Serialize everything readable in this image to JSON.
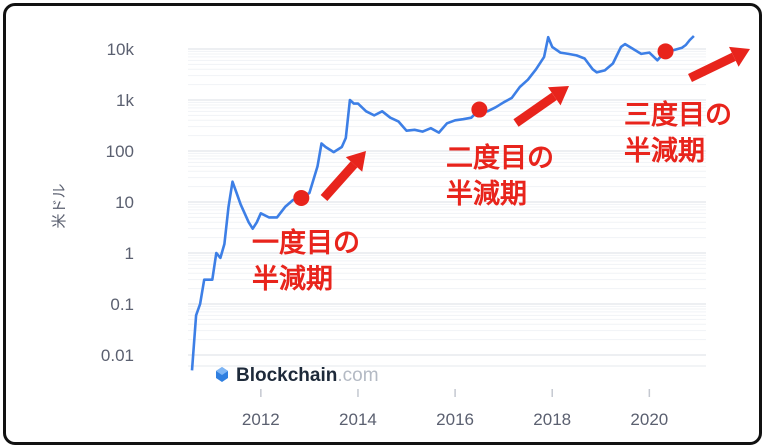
{
  "chart_data": {
    "type": "line",
    "y_scale": "log",
    "ylabel": "米ドル",
    "ylim": [
      0.003,
      25000
    ],
    "xlim": [
      "2010-07",
      "2021-03"
    ],
    "y_ticks": [
      {
        "label": "10k",
        "value": 10000
      },
      {
        "label": "1k",
        "value": 1000
      },
      {
        "label": "100",
        "value": 100
      },
      {
        "label": "10",
        "value": 10
      },
      {
        "label": "1",
        "value": 1
      },
      {
        "label": "0.1",
        "value": 0.1
      },
      {
        "label": "0.01",
        "value": 0.01
      }
    ],
    "x_ticks": [
      "2012",
      "2014",
      "2016",
      "2018",
      "2020"
    ],
    "grid": true,
    "series": [
      {
        "color": "#3d7fe6",
        "points": [
          [
            "2010-08",
            0.005
          ],
          [
            "2010-09",
            0.06
          ],
          [
            "2010-10",
            0.1
          ],
          [
            "2010-11",
            0.3
          ],
          [
            "2011-01",
            0.3
          ],
          [
            "2011-02",
            1.0
          ],
          [
            "2011-03",
            0.8
          ],
          [
            "2011-04",
            1.5
          ],
          [
            "2011-05",
            8
          ],
          [
            "2011-06",
            25
          ],
          [
            "2011-07",
            15
          ],
          [
            "2011-08",
            9
          ],
          [
            "2011-10",
            4
          ],
          [
            "2011-11",
            3
          ],
          [
            "2011-12",
            4
          ],
          [
            "2012-01",
            6
          ],
          [
            "2012-03",
            5
          ],
          [
            "2012-05",
            5
          ],
          [
            "2012-07",
            8
          ],
          [
            "2012-09",
            11
          ],
          [
            "2012-11",
            12
          ],
          [
            "2013-01",
            15
          ],
          [
            "2013-03",
            50
          ],
          [
            "2013-04",
            140
          ],
          [
            "2013-05",
            120
          ],
          [
            "2013-07",
            95
          ],
          [
            "2013-09",
            120
          ],
          [
            "2013-10",
            180
          ],
          [
            "2013-11",
            1000
          ],
          [
            "2013-12",
            850
          ],
          [
            "2014-01",
            850
          ],
          [
            "2014-03",
            600
          ],
          [
            "2014-05",
            500
          ],
          [
            "2014-07",
            600
          ],
          [
            "2014-09",
            450
          ],
          [
            "2014-11",
            380
          ],
          [
            "2015-01",
            250
          ],
          [
            "2015-03",
            260
          ],
          [
            "2015-05",
            240
          ],
          [
            "2015-07",
            280
          ],
          [
            "2015-09",
            230
          ],
          [
            "2015-11",
            350
          ],
          [
            "2016-01",
            400
          ],
          [
            "2016-03",
            420
          ],
          [
            "2016-05",
            450
          ],
          [
            "2016-07",
            650
          ],
          [
            "2016-09",
            600
          ],
          [
            "2016-11",
            720
          ],
          [
            "2017-01",
            900
          ],
          [
            "2017-03",
            1100
          ],
          [
            "2017-05",
            1800
          ],
          [
            "2017-07",
            2500
          ],
          [
            "2017-09",
            4000
          ],
          [
            "2017-11",
            7000
          ],
          [
            "2017-12",
            17000
          ],
          [
            "2018-01",
            11000
          ],
          [
            "2018-03",
            8500
          ],
          [
            "2018-05",
            8000
          ],
          [
            "2018-07",
            7500
          ],
          [
            "2018-09",
            6500
          ],
          [
            "2018-11",
            4000
          ],
          [
            "2018-12",
            3500
          ],
          [
            "2019-02",
            3800
          ],
          [
            "2019-04",
            5200
          ],
          [
            "2019-06",
            11000
          ],
          [
            "2019-07",
            12500
          ],
          [
            "2019-09",
            10000
          ],
          [
            "2019-11",
            8000
          ],
          [
            "2020-01",
            8500
          ],
          [
            "2020-03",
            6000
          ],
          [
            "2020-05",
            9000
          ],
          [
            "2020-07",
            9500
          ],
          [
            "2020-09",
            10500
          ],
          [
            "2020-10",
            12000
          ],
          [
            "2020-11",
            15000
          ],
          [
            "2020-12",
            18000
          ]
        ]
      }
    ],
    "halving_markers": [
      {
        "date": "2012-11",
        "value": 12
      },
      {
        "date": "2016-07",
        "value": 650
      },
      {
        "date": "2020-05",
        "value": 9000
      }
    ],
    "annotations": [
      {
        "lines": [
          "一度目の",
          "半減期"
        ]
      },
      {
        "lines": [
          "二度目の",
          "半減期"
        ]
      },
      {
        "lines": [
          "三度目の",
          "半減期"
        ]
      }
    ],
    "annotation_color": "#e8241c",
    "source_brand": "Blockchain",
    "source_domain": ".com"
  }
}
